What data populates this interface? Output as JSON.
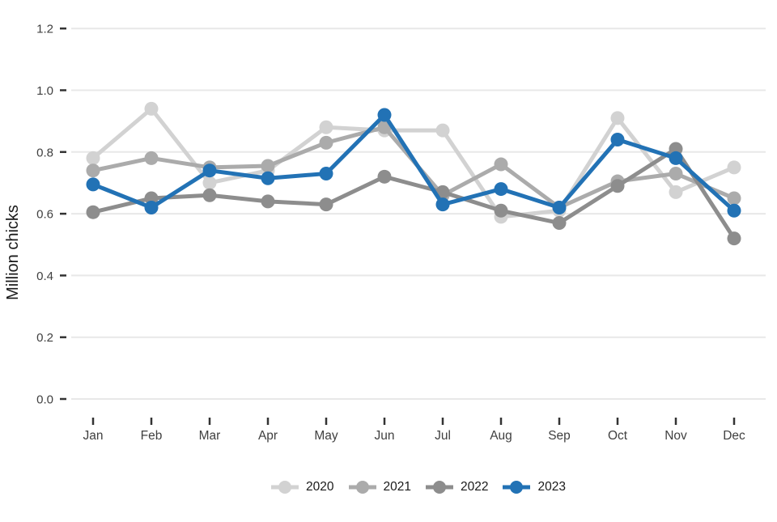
{
  "colors": {
    "background": "#ffffff",
    "gridline": "#e8e8e8",
    "tick": "#333333",
    "tick_text": "#404040",
    "axis_title_text": "#1a1a1a",
    "series_2020": "#d2d2d2",
    "series_2021": "#ababab",
    "series_2022": "#8d8d8d",
    "series_2023": "#2272b5"
  },
  "chart_data": {
    "type": "line",
    "title": "",
    "xlabel": "",
    "ylabel": "Million chicks",
    "categories": [
      "Jan",
      "Feb",
      "Mar",
      "Apr",
      "May",
      "Jun",
      "Jul",
      "Aug",
      "Sep",
      "Oct",
      "Nov",
      "Dec"
    ],
    "y_tick_labels": [
      "0.0",
      "0.2",
      "0.4",
      "0.6",
      "0.8",
      "1.0",
      "1.2"
    ],
    "ylim": [
      0,
      1.25
    ],
    "grid": "horizontal-only",
    "legend_position": "bottom-center",
    "series": [
      {
        "name": "2020",
        "color": "#d2d2d2",
        "values": [
          0.78,
          0.94,
          0.7,
          0.74,
          0.88,
          0.87,
          0.87,
          0.59,
          0.61,
          0.91,
          0.67,
          0.75
        ]
      },
      {
        "name": "2021",
        "color": "#ababab",
        "values": [
          0.74,
          0.78,
          0.75,
          0.755,
          0.83,
          0.88,
          0.66,
          0.76,
          0.62,
          0.705,
          0.73,
          0.65
        ]
      },
      {
        "name": "2022",
        "color": "#8d8d8d",
        "values": [
          0.605,
          0.65,
          0.66,
          0.64,
          0.63,
          0.72,
          0.67,
          0.61,
          0.57,
          0.69,
          0.81,
          0.52
        ]
      },
      {
        "name": "2023",
        "color": "#2272b5",
        "values": [
          0.695,
          0.62,
          0.74,
          0.715,
          0.73,
          0.92,
          0.63,
          0.68,
          0.62,
          0.84,
          0.78,
          0.61
        ]
      }
    ]
  }
}
